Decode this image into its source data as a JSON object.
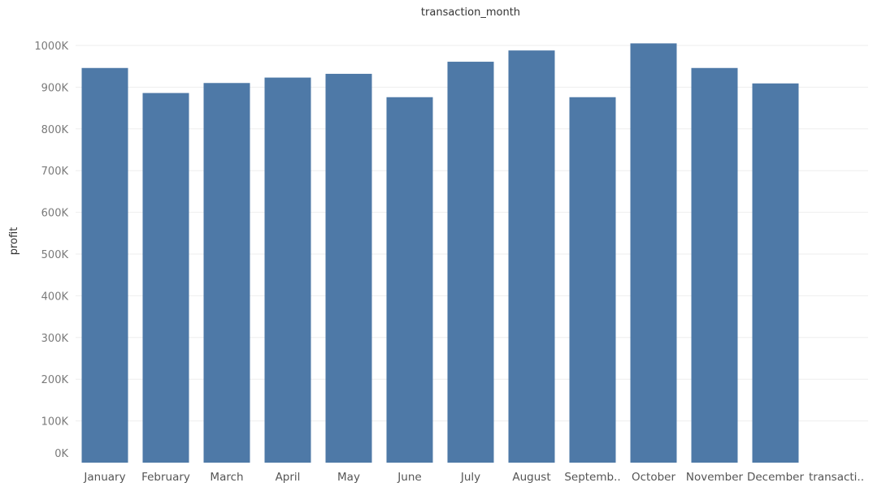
{
  "chart_data": {
    "type": "bar",
    "title": "transaction_month",
    "xlabel": "",
    "ylabel": "profit",
    "categories": [
      "January",
      "February",
      "March",
      "April",
      "May",
      "June",
      "July",
      "August",
      "Septemb..",
      "October",
      "November",
      "December",
      "transacti.."
    ],
    "values": [
      946000,
      886000,
      910000,
      923000,
      932000,
      876000,
      961000,
      988000,
      876000,
      1005000,
      946000,
      909000,
      null
    ],
    "y_ticks": [
      "0K",
      "100K",
      "200K",
      "300K",
      "400K",
      "500K",
      "600K",
      "700K",
      "800K",
      "900K",
      "1000K"
    ],
    "ylim": [
      0,
      1000000
    ],
    "grid": true,
    "bar_color": "#4e79a7",
    "grid_color": "#eeeeee"
  }
}
